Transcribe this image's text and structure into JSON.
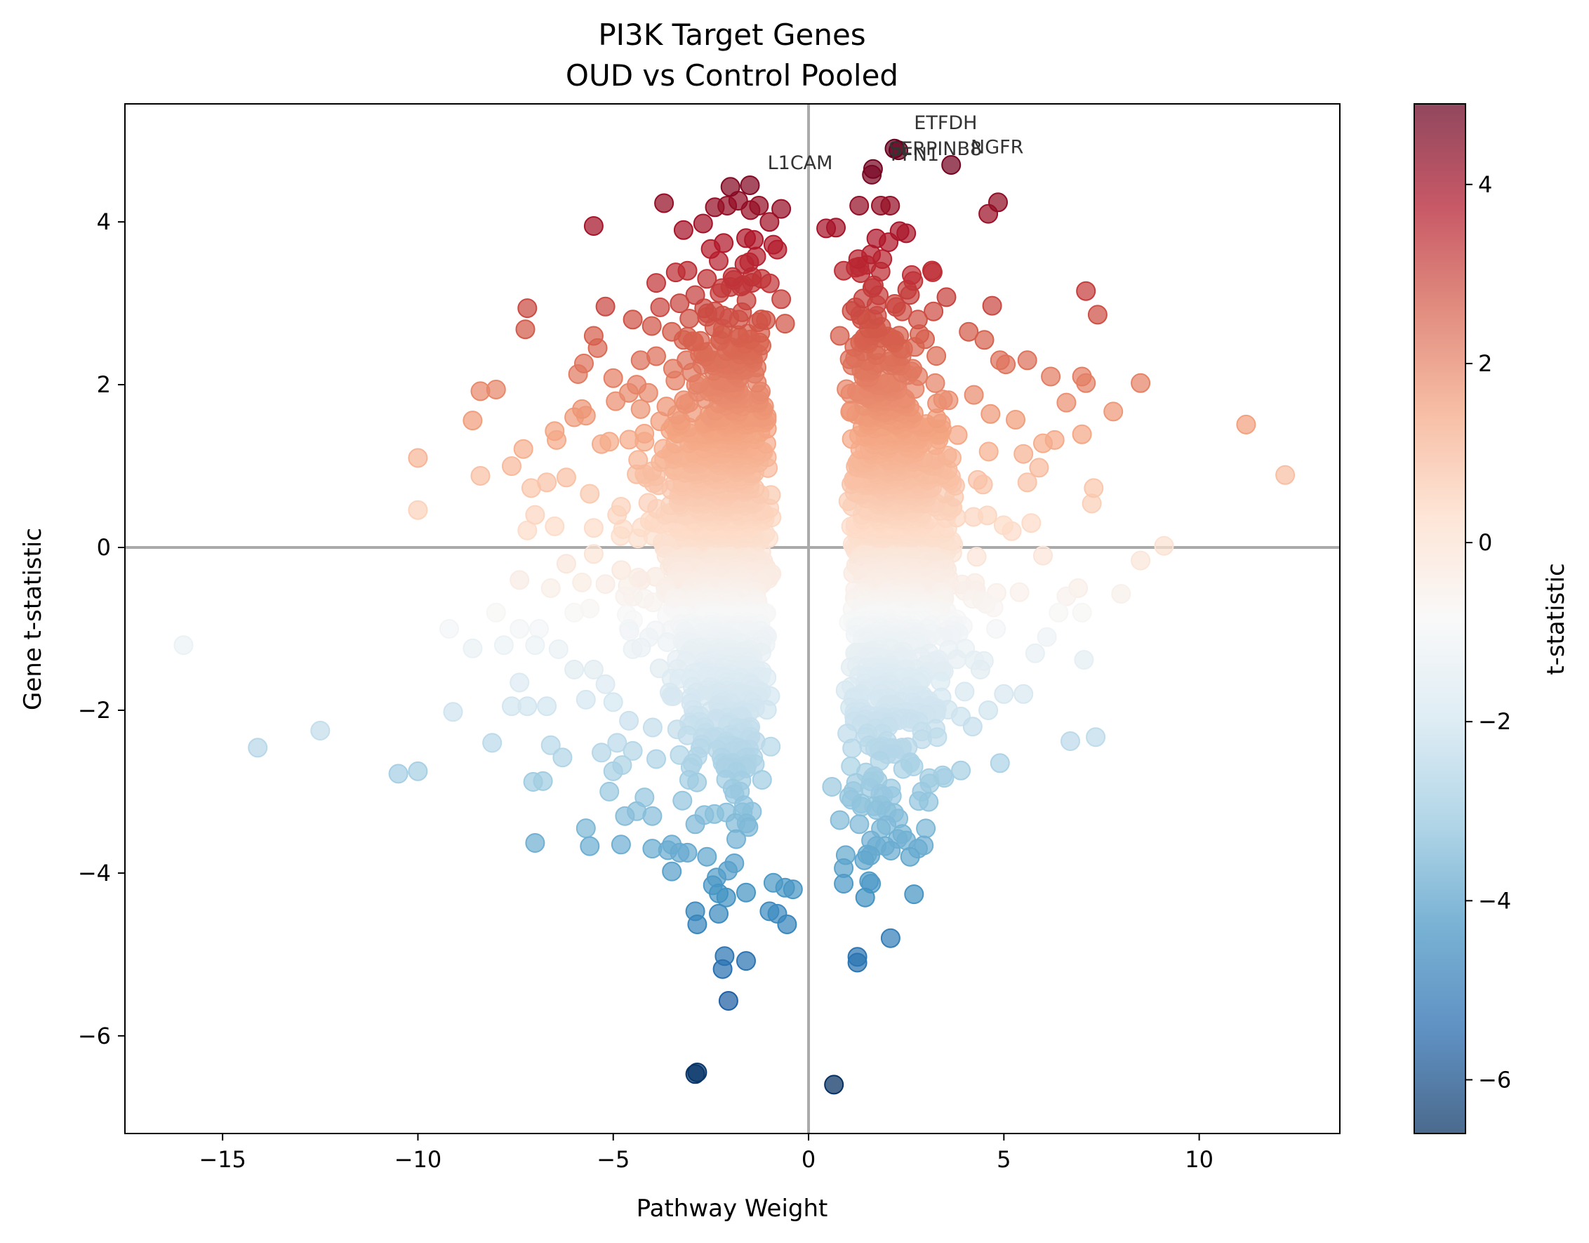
{
  "chart_data": {
    "type": "scatter",
    "title": "PI3K Target Genes",
    "subtitle": "OUD vs Control Pooled",
    "xlabel": "Pathway Weight",
    "ylabel": "Gene t-statistic",
    "xlim": [
      -17.5,
      13.6
    ],
    "ylim": [
      -7.2,
      5.45
    ],
    "xticks": [
      -15,
      -10,
      -5,
      0,
      5,
      10
    ],
    "yticks": [
      -6,
      -4,
      -2,
      0,
      2,
      4
    ],
    "grid": false,
    "reference_lines": {
      "x": 0,
      "y": 0,
      "color": "#aaaaaa"
    },
    "colormap": "RdBu_r",
    "color_range": [
      -6.6,
      4.9
    ],
    "colorbar": {
      "label": "t-statistic",
      "ticks": [
        -6,
        -4,
        -2,
        0,
        2,
        4
      ]
    },
    "points": [
      [
        1.65,
        4.65
      ],
      [
        1.62,
        4.58
      ],
      [
        2.2,
        4.9
      ],
      [
        2.3,
        4.88
      ],
      [
        3.65,
        4.7
      ],
      [
        -2.0,
        4.43
      ],
      [
        -1.5,
        4.45
      ],
      [
        -3.7,
        4.23
      ],
      [
        -0.7,
        4.16
      ],
      [
        -1.8,
        4.26
      ],
      [
        -5.5,
        3.95
      ],
      [
        -3.2,
        3.9
      ],
      [
        -2.7,
        3.98
      ],
      [
        -2.4,
        4.18
      ],
      [
        -1.0,
        4.0
      ],
      [
        -0.9,
        3.72
      ],
      [
        -0.8,
        3.66
      ],
      [
        -1.4,
        3.78
      ],
      [
        -1.6,
        3.8
      ],
      [
        -2.3,
        3.52
      ],
      [
        0.45,
        3.92
      ],
      [
        0.7,
        3.93
      ],
      [
        1.85,
        4.2
      ],
      [
        2.5,
        3.86
      ],
      [
        2.05,
        3.75
      ],
      [
        4.6,
        4.1
      ],
      [
        4.85,
        4.24
      ],
      [
        1.6,
        3.6
      ],
      [
        1.3,
        3.45
      ],
      [
        0.9,
        3.4
      ],
      [
        -3.4,
        3.38
      ],
      [
        -3.1,
        3.4
      ],
      [
        -3.9,
        3.25
      ],
      [
        -1.2,
        3.3
      ],
      [
        -0.7,
        3.05
      ],
      [
        -2.6,
        3.3
      ],
      [
        -2.0,
        3.2
      ],
      [
        7.1,
        3.15
      ],
      [
        7.4,
        2.86
      ],
      [
        -7.2,
        2.94
      ],
      [
        -7.25,
        2.68
      ],
      [
        -5.2,
        2.96
      ],
      [
        -5.5,
        2.6
      ],
      [
        -5.4,
        2.45
      ],
      [
        -4.5,
        2.8
      ],
      [
        -3.8,
        2.95
      ],
      [
        -3.5,
        2.65
      ],
      [
        -2.2,
        2.85
      ],
      [
        -0.6,
        2.75
      ],
      [
        4.7,
        2.97
      ],
      [
        4.5,
        2.55
      ],
      [
        3.2,
        2.9
      ],
      [
        2.8,
        2.8
      ],
      [
        2.4,
        2.9
      ],
      [
        1.2,
        2.95
      ],
      [
        0.8,
        2.6
      ],
      [
        4.1,
        2.65
      ],
      [
        4.9,
        2.3
      ],
      [
        5.05,
        2.25
      ],
      [
        -4.3,
        2.3
      ],
      [
        -3.9,
        2.35
      ],
      [
        -2.7,
        2.4
      ],
      [
        -5.75,
        2.26
      ],
      [
        -5.9,
        2.13
      ],
      [
        -5.0,
        2.08
      ],
      [
        -4.1,
        1.9
      ],
      [
        -8.4,
        1.92
      ],
      [
        -8.0,
        1.94
      ],
      [
        -8.6,
        1.56
      ],
      [
        -6.0,
        1.6
      ],
      [
        -5.7,
        1.62
      ],
      [
        -5.8,
        1.7
      ],
      [
        -4.3,
        1.7
      ],
      [
        -3.8,
        1.55
      ],
      [
        -5.1,
        1.3
      ],
      [
        -5.3,
        1.27
      ],
      [
        -6.5,
        1.43
      ],
      [
        -6.45,
        1.32
      ],
      [
        -7.3,
        1.21
      ],
      [
        -7.6,
        1.0
      ],
      [
        -8.4,
        0.88
      ],
      [
        -7.1,
        0.73
      ],
      [
        -10.0,
        1.1
      ],
      [
        -10.0,
        0.46
      ],
      [
        -6.2,
        0.86
      ],
      [
        -5.6,
        0.66
      ],
      [
        -6.7,
        0.8
      ],
      [
        -6.5,
        0.26
      ],
      [
        -7.0,
        0.4
      ],
      [
        -7.2,
        0.21
      ],
      [
        -5.5,
        0.24
      ],
      [
        -5.5,
        -0.08
      ],
      [
        -4.2,
        0.9
      ],
      [
        5.6,
        2.3
      ],
      [
        6.2,
        2.1
      ],
      [
        6.6,
        1.78
      ],
      [
        7.0,
        2.1
      ],
      [
        7.1,
        2.02
      ],
      [
        7.8,
        1.67
      ],
      [
        8.5,
        2.02
      ],
      [
        11.2,
        1.51
      ],
      [
        12.2,
        0.89
      ],
      [
        7.3,
        0.73
      ],
      [
        7.25,
        0.54
      ],
      [
        6.0,
        1.28
      ],
      [
        6.3,
        1.32
      ],
      [
        7.0,
        1.39
      ],
      [
        5.3,
        1.57
      ],
      [
        5.5,
        1.15
      ],
      [
        5.9,
        0.98
      ],
      [
        5.6,
        0.8
      ],
      [
        5.7,
        0.3
      ],
      [
        5.2,
        0.2
      ],
      [
        6.0,
        -0.1
      ],
      [
        9.1,
        0.02
      ],
      [
        8.5,
        -0.16
      ],
      [
        6.9,
        -0.5
      ],
      [
        7.0,
        -0.8
      ],
      [
        6.6,
        -0.6
      ],
      [
        8.0,
        -0.57
      ],
      [
        6.4,
        -0.8
      ],
      [
        5.4,
        -0.55
      ],
      [
        6.1,
        -1.1
      ],
      [
        5.8,
        -1.3
      ],
      [
        7.05,
        -1.38
      ],
      [
        4.8,
        -1.0
      ],
      [
        4.4,
        -1.5
      ],
      [
        5.0,
        -1.8
      ],
      [
        5.5,
        -1.8
      ],
      [
        4.6,
        -2.0
      ],
      [
        4.2,
        -2.2
      ],
      [
        6.7,
        -2.38
      ],
      [
        7.35,
        -2.33
      ],
      [
        4.9,
        -2.65
      ],
      [
        3.9,
        -2.74
      ],
      [
        3.1,
        -2.9
      ],
      [
        2.6,
        -2.65
      ],
      [
        2.9,
        -3.0
      ],
      [
        1.1,
        -3.1
      ],
      [
        0.6,
        -2.94
      ],
      [
        0.8,
        -3.35
      ],
      [
        1.3,
        -3.4
      ],
      [
        2.3,
        -3.33
      ],
      [
        2.5,
        -3.6
      ],
      [
        2.8,
        -3.7
      ],
      [
        2.95,
        -3.66
      ],
      [
        2.6,
        -3.8
      ],
      [
        1.6,
        -3.6
      ],
      [
        2.4,
        -3.52
      ],
      [
        0.95,
        -3.78
      ],
      [
        0.9,
        -3.94
      ],
      [
        0.9,
        -4.13
      ],
      [
        1.45,
        -4.3
      ],
      [
        1.6,
        -4.13
      ],
      [
        1.55,
        -4.1
      ],
      [
        2.7,
        -4.26
      ],
      [
        2.1,
        -4.8
      ],
      [
        1.25,
        -5.03
      ],
      [
        1.25,
        -5.1
      ],
      [
        0.65,
        -6.6
      ],
      [
        -2.9,
        -6.47
      ],
      [
        -2.85,
        -6.45
      ],
      [
        -2.05,
        -5.57
      ],
      [
        -2.2,
        -5.18
      ],
      [
        -2.15,
        -5.02
      ],
      [
        -1.6,
        -5.08
      ],
      [
        -2.3,
        -4.5
      ],
      [
        -2.9,
        -4.47
      ],
      [
        -2.85,
        -4.63
      ],
      [
        -2.45,
        -4.15
      ],
      [
        -2.3,
        -4.25
      ],
      [
        -1.6,
        -4.24
      ],
      [
        -1.0,
        -4.47
      ],
      [
        -0.8,
        -4.5
      ],
      [
        -0.55,
        -4.63
      ],
      [
        -0.9,
        -4.12
      ],
      [
        -0.6,
        -4.18
      ],
      [
        -0.4,
        -4.2
      ],
      [
        -1.9,
        -3.88
      ],
      [
        -2.6,
        -3.8
      ],
      [
        -3.1,
        -3.75
      ],
      [
        -3.5,
        -3.65
      ],
      [
        -3.3,
        -3.75
      ],
      [
        -3.5,
        -3.98
      ],
      [
        -3.6,
        -3.72
      ],
      [
        -4.0,
        -3.7
      ],
      [
        -4.8,
        -3.65
      ],
      [
        -5.6,
        -3.67
      ],
      [
        -5.7,
        -3.45
      ],
      [
        -7.0,
        -3.63
      ],
      [
        -4.7,
        -3.3
      ],
      [
        -4.4,
        -3.24
      ],
      [
        -4.0,
        -3.3
      ],
      [
        -4.2,
        -3.07
      ],
      [
        -2.9,
        -3.4
      ],
      [
        -5.1,
        -3.0
      ],
      [
        -5.0,
        -2.75
      ],
      [
        -5.3,
        -2.52
      ],
      [
        -6.3,
        -2.58
      ],
      [
        -6.6,
        -2.43
      ],
      [
        -7.05,
        -2.88
      ],
      [
        -6.8,
        -2.87
      ],
      [
        -9.1,
        -2.02
      ],
      [
        -10.5,
        -2.78
      ],
      [
        -10.0,
        -2.75
      ],
      [
        -12.5,
        -2.25
      ],
      [
        -14.1,
        -2.46
      ],
      [
        -8.1,
        -2.4
      ],
      [
        -7.2,
        -1.95
      ],
      [
        -7.6,
        -1.95
      ],
      [
        -6.7,
        -1.95
      ],
      [
        -7.4,
        -1.66
      ],
      [
        -5.7,
        -1.87
      ],
      [
        -5.2,
        -1.68
      ],
      [
        -6.0,
        -1.5
      ],
      [
        -5.5,
        -1.5
      ],
      [
        -5.0,
        -1.9
      ],
      [
        -8.6,
        -1.24
      ],
      [
        -9.2,
        -1.0
      ],
      [
        -16.0,
        -1.2
      ],
      [
        -7.8,
        -1.2
      ],
      [
        -7.0,
        -1.2
      ],
      [
        -6.4,
        -1.25
      ],
      [
        -8.0,
        -0.8
      ],
      [
        -7.4,
        -1.0
      ],
      [
        -6.9,
        -1.0
      ],
      [
        -6.0,
        -0.8
      ],
      [
        -5.6,
        -0.75
      ],
      [
        -6.6,
        -0.5
      ],
      [
        -5.8,
        -0.43
      ],
      [
        -5.2,
        -0.45
      ],
      [
        -7.4,
        -0.4
      ],
      [
        -6.2,
        -0.2
      ],
      [
        -4.7,
        -0.6
      ],
      [
        -4.6,
        -1.0
      ],
      [
        -4.5,
        -1.25
      ],
      [
        -4.9,
        -2.4
      ],
      [
        -4.5,
        -2.5
      ],
      [
        -3.9,
        -2.6
      ],
      [
        -3.3,
        -2.55
      ],
      [
        -4.4,
        0.9
      ],
      [
        -4.8,
        0.5
      ],
      [
        -4.9,
        0.4
      ],
      [
        -4.2,
        1.3
      ],
      [
        -4.6,
        1.9
      ],
      [
        -4.4,
        2.0
      ],
      [
        -3.2,
        2.55
      ],
      [
        -3.3,
        3.0
      ],
      [
        -2.9,
        3.1
      ],
      [
        -2.4,
        2.9
      ]
    ]
  },
  "annotations": [
    {
      "text": "ETFDH",
      "x": 2.7,
      "y": 5.14
    },
    {
      "text": "SERPINB8",
      "x": 2.05,
      "y": 4.82
    },
    {
      "text": "PFN1",
      "x": 2.1,
      "y": 4.75
    },
    {
      "text": "NGFR",
      "x": 4.15,
      "y": 4.84
    },
    {
      "text": "L1CAM",
      "x": -1.05,
      "y": 4.65
    }
  ],
  "axes_color": "#000000",
  "colorbar_stops": [
    {
      "t": 0.0,
      "c": "#053061"
    },
    {
      "t": 0.1,
      "c": "#2166ac"
    },
    {
      "t": 0.2,
      "c": "#4393c3"
    },
    {
      "t": 0.3,
      "c": "#92c5de"
    },
    {
      "t": 0.4,
      "c": "#d1e5f0"
    },
    {
      "t": 0.5,
      "c": "#f7f7f7"
    },
    {
      "t": 0.6,
      "c": "#fddbc7"
    },
    {
      "t": 0.7,
      "c": "#f4a582"
    },
    {
      "t": 0.8,
      "c": "#d6604d"
    },
    {
      "t": 0.9,
      "c": "#b2182b"
    },
    {
      "t": 1.0,
      "c": "#67001f"
    }
  ]
}
